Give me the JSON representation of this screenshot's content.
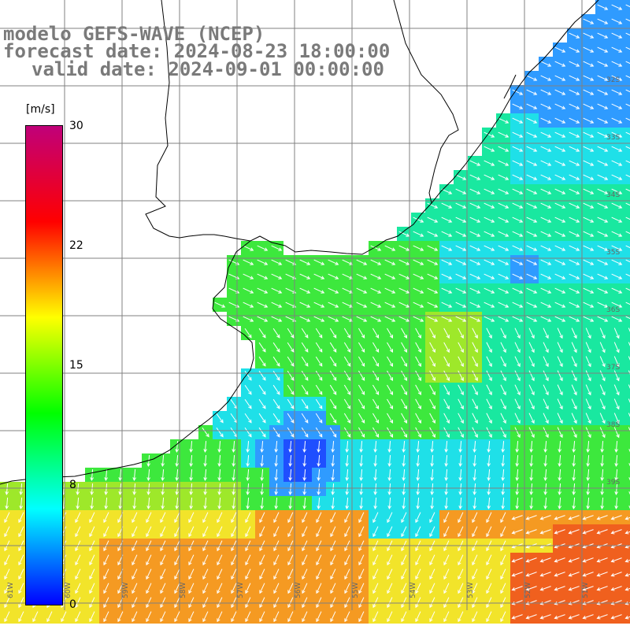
{
  "titles": {
    "model": "modelo GEFS-WAVE (NCEP)",
    "forecast": "forecast date: 2024-08-23 18:00:00",
    "valid": "valid date: 2024-09-01 00:00:00"
  },
  "colorbar": {
    "unit": "[m/s]",
    "ticks": [
      "30",
      "22",
      "15",
      "8",
      "0"
    ],
    "colors": [
      "#0000ff",
      "#00ffff",
      "#00ff00",
      "#ffff00",
      "#ff0000",
      "#c0007a"
    ]
  },
  "map": {
    "lon_labels": [
      "61W",
      "60W",
      "59W",
      "58W",
      "57W",
      "56W",
      "55W",
      "54W",
      "53W",
      "52W",
      "51W"
    ],
    "lat_labels": [
      "32S",
      "33S",
      "34S",
      "35S",
      "36S",
      "37S",
      "38S",
      "39S"
    ],
    "field_colors": {
      "deep_blue": "#1f4fff",
      "blue": "#2f9bff",
      "cyan": "#1fe0e8",
      "teal": "#19e8a0",
      "green": "#3de83d",
      "lime": "#9ee82a",
      "yellow": "#f2e42a",
      "orange": "#f59a22",
      "red": "#f0601e"
    },
    "arrows_color": "#ffffff",
    "coastline_color": "#000000",
    "grid_color": "#808080"
  }
}
